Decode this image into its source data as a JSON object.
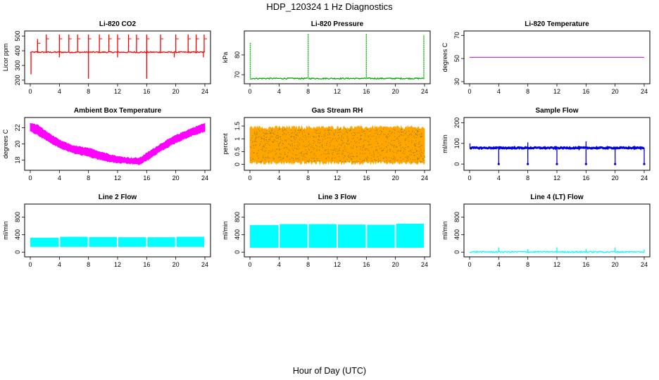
{
  "figure": {
    "title": "HDP_120324  1 Hz Diagnostics",
    "xlabel": "Hour of Day (UTC)"
  },
  "chart_data": [
    {
      "type": "line",
      "title": "Li-820 CO2",
      "ylabel": "Licor ppm",
      "color": "#ff0000",
      "xlim": [
        0,
        24
      ],
      "xticks": [
        0,
        4,
        8,
        12,
        16,
        20,
        24
      ],
      "ylim": [
        190,
        520
      ],
      "yticks": [
        200,
        300,
        400,
        500
      ],
      "baseline": 390,
      "spikes_up": [
        [
          1.0,
          480
        ],
        [
          2.2,
          510
        ],
        [
          4.0,
          510
        ],
        [
          5.3,
          510
        ],
        [
          6.5,
          510
        ],
        [
          8.0,
          510
        ],
        [
          9.5,
          510
        ],
        [
          10.8,
          510
        ],
        [
          12.0,
          510
        ],
        [
          13.5,
          510
        ],
        [
          14.6,
          510
        ],
        [
          16.0,
          510
        ],
        [
          17.9,
          510
        ],
        [
          20.0,
          510
        ],
        [
          21.7,
          510
        ],
        [
          22.8,
          510
        ],
        [
          23.9,
          510
        ]
      ],
      "spikes_down": [
        [
          0.1,
          240
        ],
        [
          4.0,
          355
        ],
        [
          8.0,
          210
        ],
        [
          12.0,
          355
        ],
        [
          16.0,
          210
        ],
        [
          19.8,
          355
        ],
        [
          23.8,
          355
        ]
      ],
      "series": [
        {
          "name": "CO2",
          "values": "1 Hz trace ~390 ppm with periodic calibration spikes"
        }
      ]
    },
    {
      "type": "line",
      "title": "Li-820 Pressure",
      "ylabel": "kPa",
      "color": "#00aa00",
      "xlim": [
        0,
        24
      ],
      "xticks": [
        0,
        4,
        8,
        12,
        16,
        20,
        24
      ],
      "ylim": [
        66.5,
        91
      ],
      "yticks": [
        70,
        80
      ],
      "baseline": 68.1,
      "spikes_up": [
        [
          0.05,
          86
        ],
        [
          8.0,
          90.5
        ],
        [
          16.0,
          90.5
        ],
        [
          23.9,
          90
        ]
      ],
      "spikes_down": [],
      "series": [
        {
          "name": "Pressure",
          "values": "~68 kPa baseline with spikes at 0, 8, 16, 24 h"
        }
      ]
    },
    {
      "type": "line",
      "title": "Li-820 Temperature",
      "ylabel": "degrees C",
      "color": "#ff00ff",
      "xlim": [
        0,
        24
      ],
      "xticks": [
        0,
        4,
        8,
        12,
        16,
        20,
        24
      ],
      "ylim": [
        30,
        72
      ],
      "yticks": [
        30,
        50,
        70
      ],
      "series": [
        {
          "name": "Temperature",
          "x": [
            0,
            24
          ],
          "y": [
            51,
            51
          ]
        }
      ]
    },
    {
      "type": "area",
      "title": "Ambient Box Temperature",
      "ylabel": "degrees C",
      "color": "#ff00ff",
      "xlim": [
        0,
        24
      ],
      "xticks": [
        0,
        4,
        8,
        12,
        16,
        20,
        24
      ],
      "ylim": [
        17,
        23
      ],
      "yticks": [
        18,
        20,
        22
      ],
      "upper": [
        [
          0,
          22.5
        ],
        [
          1,
          22.3
        ],
        [
          2,
          21.6
        ],
        [
          4,
          20.4
        ],
        [
          6,
          19.7
        ],
        [
          8,
          19.4
        ],
        [
          10,
          18.9
        ],
        [
          12,
          18.4
        ],
        [
          14,
          18.2
        ],
        [
          15,
          18.2
        ],
        [
          16,
          18.8
        ],
        [
          18,
          20.0
        ],
        [
          20,
          21.0
        ],
        [
          22,
          21.8
        ],
        [
          24,
          22.5
        ]
      ],
      "lower": [
        [
          0,
          21.6
        ],
        [
          1,
          21.2
        ],
        [
          2,
          20.6
        ],
        [
          4,
          19.6
        ],
        [
          6,
          18.9
        ],
        [
          8,
          18.5
        ],
        [
          10,
          18.0
        ],
        [
          12,
          17.7
        ],
        [
          14,
          17.6
        ],
        [
          15,
          17.5
        ],
        [
          16,
          18.0
        ],
        [
          18,
          19.2
        ],
        [
          20,
          20.2
        ],
        [
          22,
          21.0
        ],
        [
          24,
          21.6
        ]
      ]
    },
    {
      "type": "area",
      "title": "Gas Stream RH",
      "ylabel": "percent",
      "color": "#ffa500",
      "xlim": [
        0,
        24
      ],
      "xticks": [
        0,
        4,
        8,
        12,
        16,
        20,
        24
      ],
      "ylim": [
        -0.15,
        1.75
      ],
      "yticks": [
        0.0,
        0.5,
        1.0,
        1.5
      ],
      "upper": [
        [
          0,
          1.4
        ],
        [
          24,
          1.4
        ]
      ],
      "lower": [
        [
          0,
          0.1
        ],
        [
          24,
          0.1
        ]
      ]
    },
    {
      "type": "line",
      "title": "Sample Flow",
      "ylabel": "ml/min",
      "color": "#0000dd",
      "xlim": [
        0,
        24
      ],
      "xticks": [
        0,
        4,
        8,
        12,
        16,
        20,
        24
      ],
      "ylim": [
        -20,
        215
      ],
      "yticks": [
        0,
        100,
        200
      ],
      "baseline": 78,
      "spikes_up": [
        [
          0.05,
          100
        ],
        [
          8.0,
          105
        ],
        [
          16.0,
          110
        ]
      ],
      "spikes_down": [
        [
          4.0,
          0
        ],
        [
          8.0,
          0
        ],
        [
          12.0,
          0
        ],
        [
          16.0,
          0
        ],
        [
          20.0,
          0
        ],
        [
          24.0,
          0
        ]
      ],
      "series": [
        {
          "name": "Sample Flow",
          "values": "~78 ml/min with dips to 0 every 4 h"
        }
      ]
    },
    {
      "type": "area",
      "title": "Line 2 Flow",
      "ylabel": "ml/min",
      "color": "#00ffff",
      "xlim": [
        0,
        24
      ],
      "xticks": [
        0,
        4,
        8,
        12,
        16,
        20,
        24
      ],
      "ylim": [
        -60,
        1050
      ],
      "yticks": [
        0,
        400,
        800
      ],
      "segments": [
        [
          0,
          4,
          120,
          330
        ],
        [
          4,
          8,
          120,
          350
        ],
        [
          8,
          12,
          120,
          345
        ],
        [
          12,
          16,
          120,
          340
        ],
        [
          16,
          20,
          120,
          340
        ],
        [
          20,
          24,
          120,
          350
        ]
      ]
    },
    {
      "type": "area",
      "title": "Line 3 Flow",
      "ylabel": "ml/min",
      "color": "#00ffff",
      "xlim": [
        0,
        24
      ],
      "xticks": [
        0,
        4,
        8,
        12,
        16,
        20,
        24
      ],
      "ylim": [
        -60,
        1050
      ],
      "yticks": [
        0,
        400,
        800
      ],
      "segments": [
        [
          0,
          4,
          100,
          620
        ],
        [
          4,
          8,
          100,
          640
        ],
        [
          8,
          12,
          100,
          640
        ],
        [
          12,
          16,
          100,
          630
        ],
        [
          16,
          20,
          100,
          625
        ],
        [
          20,
          24,
          100,
          650
        ]
      ]
    },
    {
      "type": "line",
      "title": "Line 4 (LT) Flow",
      "ylabel": "ml/min",
      "color": "#00ffff",
      "xlim": [
        0,
        24
      ],
      "xticks": [
        0,
        4,
        8,
        12,
        16,
        20,
        24
      ],
      "ylim": [
        -60,
        1050
      ],
      "yticks": [
        0,
        400,
        800
      ],
      "baseline": 5,
      "spikes_up": [
        [
          4.0,
          110
        ],
        [
          8.0,
          70
        ],
        [
          12.0,
          110
        ],
        [
          16.0,
          70
        ],
        [
          20.0,
          110
        ],
        [
          24.0,
          60
        ]
      ],
      "spikes_down": [],
      "series": [
        {
          "name": "Line 4 Flow",
          "values": "~0 ml/min with small spikes every 4 h"
        }
      ]
    }
  ]
}
